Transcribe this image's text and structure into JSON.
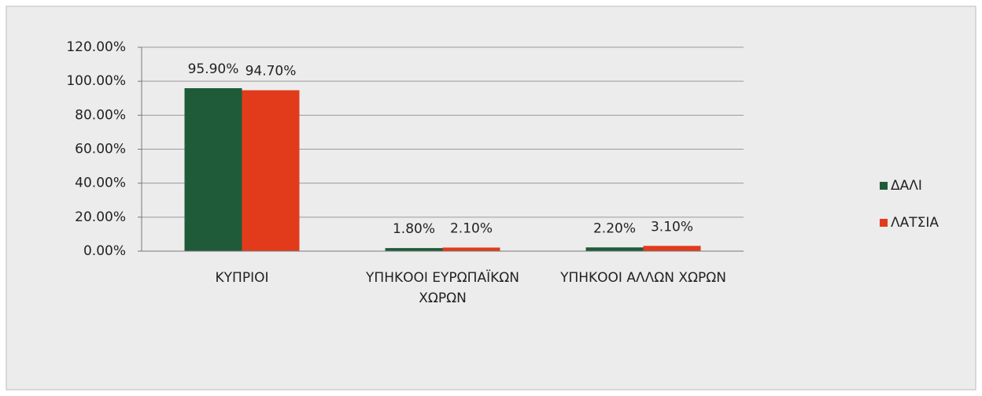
{
  "chart_data": {
    "type": "bar",
    "categories": [
      "ΚΥΠΡΙΟΙ",
      "ΥΠΗΚΟΟΙ ΕΥΡΩΠΑΪΚΩΝ ΧΩΡΩΝ",
      "ΥΠΗΚΟΟΙ ΑΛΛΩΝ ΧΩΡΩΝ"
    ],
    "series": [
      {
        "name": "ΔΑΛΙ",
        "color": "#1f5b39",
        "values": [
          95.9,
          1.8,
          2.2
        ],
        "value_labels": [
          "95.90%",
          "1.80%",
          "2.20%"
        ]
      },
      {
        "name": "ΛΑΤΣΙΑ",
        "color": "#e23b1b",
        "values": [
          94.7,
          2.1,
          3.1
        ],
        "value_labels": [
          "94.70%",
          "2.10%",
          "3.10%"
        ]
      }
    ],
    "ylim": [
      0,
      120
    ],
    "yticks": [
      {
        "value": 0,
        "label": "0.00%"
      },
      {
        "value": 20,
        "label": "20.00%"
      },
      {
        "value": 40,
        "label": "40.00%"
      },
      {
        "value": 60,
        "label": "60.00%"
      },
      {
        "value": 80,
        "label": "80.00%"
      },
      {
        "value": 100,
        "label": "100.00%"
      },
      {
        "value": 120,
        "label": "120.00%"
      }
    ],
    "grid": true,
    "legend": "right"
  }
}
